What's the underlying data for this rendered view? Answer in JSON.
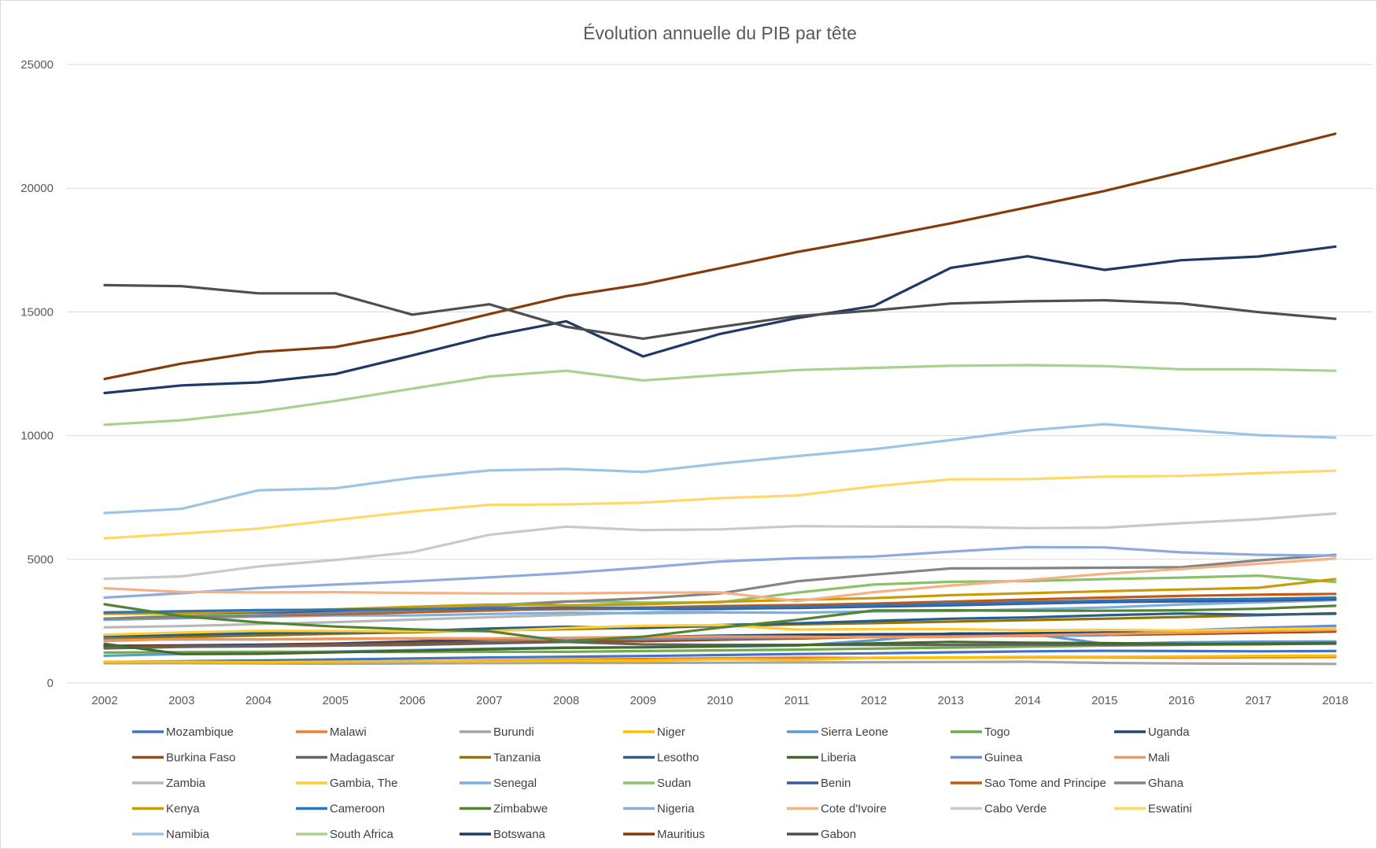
{
  "chart_data": {
    "type": "line",
    "title": "Évolution annuelle du PIB par tête",
    "xlabel": "",
    "ylabel": "",
    "x": [
      "2002",
      "2003",
      "2004",
      "2005",
      "2006",
      "2007",
      "2008",
      "2009",
      "2010",
      "2011",
      "2012",
      "2013",
      "2014",
      "2015",
      "2016",
      "2017",
      "2018"
    ],
    "ylim": [
      0,
      25000
    ],
    "yticks": [
      "0",
      "5000",
      "10000",
      "15000",
      "20000",
      "25000"
    ],
    "grid": "horizontal",
    "legend_position": "bottom",
    "series": [
      {
        "name": "Mozambique",
        "color": "#4472C4",
        "values": [
          850,
          880,
          910,
          950,
          990,
          1030,
          1060,
          1090,
          1130,
          1170,
          1200,
          1240,
          1280,
          1300,
          1290,
          1280,
          1290
        ]
      },
      {
        "name": "Malawi",
        "color": "#ED7D31",
        "values": [
          800,
          810,
          830,
          850,
          870,
          900,
          940,
          970,
          1000,
          1020,
          1010,
          1020,
          1040,
          1040,
          1030,
          1040,
          1050
        ]
      },
      {
        "name": "Burundi",
        "color": "#A5A5A5",
        "values": [
          800,
          800,
          790,
          780,
          790,
          800,
          810,
          810,
          820,
          830,
          840,
          850,
          860,
          810,
          790,
          780,
          770
        ]
      },
      {
        "name": "Niger",
        "color": "#FFC000",
        "values": [
          860,
          860,
          840,
          860,
          880,
          870,
          910,
          900,
          960,
          930,
          1020,
          1030,
          1060,
          1060,
          1070,
          1090,
          1110
        ]
      },
      {
        "name": "Sierra Leone",
        "color": "#5B9BD5",
        "values": [
          1100,
          1170,
          1220,
          1270,
          1330,
          1390,
          1430,
          1440,
          1470,
          1510,
          1720,
          2010,
          2000,
          1580,
          1640,
          1670,
          1680
        ]
      },
      {
        "name": "Togo",
        "color": "#70AD47",
        "values": [
          1230,
          1250,
          1260,
          1260,
          1250,
          1260,
          1260,
          1290,
          1320,
          1350,
          1390,
          1430,
          1470,
          1510,
          1540,
          1560,
          1600
        ]
      },
      {
        "name": "Uganda",
        "color": "#264478",
        "values": [
          1500,
          1520,
          1550,
          1590,
          1680,
          1760,
          1810,
          1860,
          1910,
          1950,
          1970,
          1980,
          2010,
          2040,
          2040,
          2070,
          2110
        ]
      },
      {
        "name": "Burkina Faso",
        "color": "#9E480E",
        "values": [
          1450,
          1490,
          1510,
          1560,
          1610,
          1640,
          1690,
          1690,
          1750,
          1800,
          1860,
          1890,
          1920,
          1940,
          1980,
          2030,
          2080
        ]
      },
      {
        "name": "Madagascar",
        "color": "#636363",
        "values": [
          1400,
          1460,
          1480,
          1510,
          1540,
          1600,
          1660,
          1560,
          1540,
          1540,
          1540,
          1540,
          1550,
          1550,
          1560,
          1590,
          1620
        ]
      },
      {
        "name": "Tanzania",
        "color": "#997300",
        "values": [
          1800,
          1860,
          1920,
          1990,
          2050,
          2120,
          2180,
          2230,
          2300,
          2370,
          2420,
          2480,
          2540,
          2600,
          2670,
          2740,
          2820
        ]
      },
      {
        "name": "Lesotho",
        "color": "#255E91",
        "values": [
          1900,
          1950,
          2010,
          2050,
          2100,
          2200,
          2270,
          2220,
          2340,
          2410,
          2510,
          2600,
          2650,
          2740,
          2810,
          2760,
          2800
        ]
      },
      {
        "name": "Liberia",
        "color": "#43682B",
        "values": [
          1580,
          1170,
          1180,
          1240,
          1300,
          1360,
          1420,
          1440,
          1490,
          1530,
          1600,
          1660,
          1630,
          1610,
          1580,
          1580,
          1590
        ]
      },
      {
        "name": "Guinea",
        "color": "#698ED0",
        "values": [
          1750,
          1760,
          1760,
          1780,
          1800,
          1780,
          1810,
          1770,
          1810,
          1830,
          1860,
          1890,
          1900,
          1930,
          2120,
          2230,
          2310
        ]
      },
      {
        "name": "Mali",
        "color": "#F1975A",
        "values": [
          1700,
          1780,
          1760,
          1790,
          1810,
          1800,
          1830,
          1860,
          1880,
          1870,
          1850,
          1860,
          1920,
          1980,
          2030,
          2090,
          2140
        ]
      },
      {
        "name": "Zambia",
        "color": "#B7B7B7",
        "values": [
          2250,
          2300,
          2380,
          2460,
          2560,
          2660,
          2750,
          2850,
          2970,
          3060,
          3170,
          3230,
          3290,
          3290,
          3290,
          3320,
          3380
        ]
      },
      {
        "name": "Gambia, The",
        "color": "#FFCD33",
        "values": [
          1950,
          2040,
          2110,
          2100,
          2090,
          2100,
          2220,
          2310,
          2340,
          2160,
          2180,
          2180,
          2130,
          2150,
          2120,
          2170,
          2210
        ]
      },
      {
        "name": "Senegal",
        "color": "#7CAFDD",
        "values": [
          2550,
          2620,
          2680,
          2730,
          2730,
          2790,
          2840,
          2820,
          2850,
          2840,
          2890,
          2910,
          2980,
          3050,
          3170,
          3260,
          3350
        ]
      },
      {
        "name": "Sudan",
        "color": "#8CC168",
        "values": [
          2600,
          2730,
          2860,
          2900,
          3030,
          3140,
          3300,
          3250,
          3260,
          3650,
          3980,
          4090,
          4120,
          4200,
          4260,
          4340,
          4080
        ]
      },
      {
        "name": "Benin",
        "color": "#335AA1",
        "values": [
          2800,
          2830,
          2860,
          2870,
          2910,
          2950,
          2990,
          3000,
          3010,
          3030,
          3090,
          3140,
          3210,
          3270,
          3300,
          3330,
          3380
        ]
      },
      {
        "name": "Sao Tome and Principe",
        "color": "#C65911",
        "values": [
          2600,
          2680,
          2720,
          2780,
          2860,
          2930,
          3010,
          3040,
          3110,
          3150,
          3210,
          3290,
          3370,
          3450,
          3520,
          3570,
          3600
        ]
      },
      {
        "name": "Ghana",
        "color": "#848484",
        "values": [
          2600,
          2650,
          2740,
          2830,
          2930,
          3080,
          3290,
          3420,
          3620,
          4110,
          4380,
          4630,
          4640,
          4660,
          4680,
          4960,
          5180
        ]
      },
      {
        "name": "Kenya",
        "color": "#CC9A06",
        "values": [
          2800,
          2820,
          2900,
          2980,
          3080,
          3170,
          3140,
          3180,
          3280,
          3360,
          3430,
          3550,
          3630,
          3710,
          3780,
          3850,
          4200
        ]
      },
      {
        "name": "Cameroon",
        "color": "#2E75B6",
        "values": [
          2850,
          2900,
          2950,
          2960,
          2980,
          3020,
          3040,
          3040,
          3050,
          3080,
          3140,
          3200,
          3260,
          3330,
          3380,
          3400,
          3450
        ]
      },
      {
        "name": "Zimbabwe",
        "color": "#548235",
        "values": [
          3180,
          2700,
          2450,
          2280,
          2170,
          2090,
          1690,
          1870,
          2240,
          2550,
          2930,
          2940,
          2920,
          2920,
          2940,
          3000,
          3120
        ]
      },
      {
        "name": "Nigeria",
        "color": "#8FAADC",
        "values": [
          3450,
          3630,
          3840,
          3980,
          4110,
          4270,
          4440,
          4660,
          4910,
          5040,
          5110,
          5310,
          5490,
          5480,
          5280,
          5180,
          5150
        ]
      },
      {
        "name": "Cote d'Ivoire",
        "color": "#F4B183",
        "values": [
          3830,
          3680,
          3660,
          3670,
          3640,
          3620,
          3620,
          3650,
          3660,
          3310,
          3670,
          3940,
          4160,
          4410,
          4610,
          4820,
          5030
        ]
      },
      {
        "name": "Cabo Verde",
        "color": "#C9C9C9",
        "values": [
          4210,
          4310,
          4710,
          4970,
          5290,
          5990,
          6320,
          6180,
          6210,
          6340,
          6320,
          6310,
          6260,
          6280,
          6460,
          6620,
          6850
        ]
      },
      {
        "name": "Eswatini",
        "color": "#FFD966",
        "values": [
          5850,
          6040,
          6240,
          6590,
          6930,
          7200,
          7220,
          7290,
          7470,
          7580,
          7950,
          8230,
          8240,
          8340,
          8370,
          8480,
          8580
        ]
      },
      {
        "name": "Namibia",
        "color": "#9DC3E6",
        "values": [
          6870,
          7040,
          7790,
          7870,
          8290,
          8590,
          8650,
          8530,
          8870,
          9170,
          9450,
          9820,
          10210,
          10460,
          10240,
          10020,
          9920
        ]
      },
      {
        "name": "South Africa",
        "color": "#A9D18E",
        "values": [
          10440,
          10620,
          10960,
          11400,
          11900,
          12390,
          12620,
          12230,
          12450,
          12650,
          12740,
          12820,
          12850,
          12810,
          12680,
          12680,
          12620
        ]
      },
      {
        "name": "Botswana",
        "color": "#203864",
        "values": [
          11720,
          12030,
          12150,
          12490,
          13240,
          14020,
          14620,
          13200,
          14110,
          14750,
          15240,
          16780,
          17250,
          16700,
          17090,
          17240,
          17640
        ]
      },
      {
        "name": "Mauritius",
        "color": "#843C0C",
        "values": [
          12290,
          12910,
          13380,
          13580,
          14170,
          14910,
          15640,
          16120,
          16770,
          17420,
          17980,
          18580,
          19230,
          19890,
          20640,
          21420,
          22200
        ]
      },
      {
        "name": "Gabon",
        "color": "#4F4F4F",
        "values": [
          16080,
          16040,
          15750,
          15750,
          14890,
          15310,
          14400,
          13920,
          14390,
          14830,
          15060,
          15340,
          15430,
          15470,
          15340,
          14990,
          14720
        ]
      }
    ]
  }
}
